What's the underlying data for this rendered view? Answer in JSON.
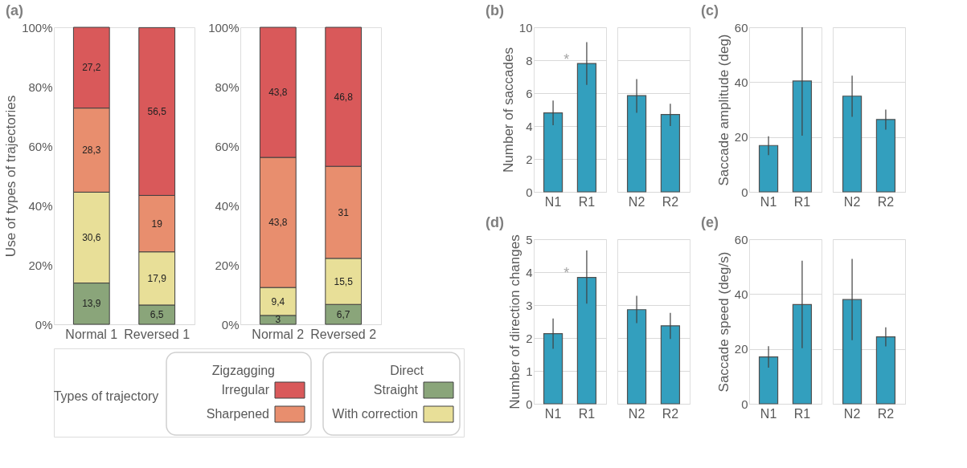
{
  "chart_data": [
    {
      "type": "bar",
      "stacked": true,
      "title": "(a)",
      "ylabel": "Use of types of trajectories",
      "categories": [
        "Normal 1",
        "Reversed 1"
      ],
      "series": [
        {
          "name": "Straight",
          "color": "#8aa57a",
          "values": [
            13.9,
            6.5
          ],
          "value_labels": [
            "13,9",
            "6,5"
          ]
        },
        {
          "name": "With correction",
          "color": "#e8df98",
          "values": [
            30.6,
            17.9
          ],
          "value_labels": [
            "30,6",
            "17,9"
          ]
        },
        {
          "name": "Sharpened",
          "color": "#e88e6e",
          "values": [
            28.3,
            19
          ],
          "value_labels": [
            "28,3",
            "19"
          ]
        },
        {
          "name": "Irregular",
          "color": "#d9595a",
          "values": [
            27.2,
            56.5
          ],
          "value_labels": [
            "27,2",
            "56,5"
          ]
        }
      ],
      "ylim": [
        0,
        100
      ],
      "yticks": [
        {
          "value": 0,
          "label": "0%"
        },
        {
          "value": 20,
          "label": "20%"
        },
        {
          "value": 40,
          "label": "40%"
        },
        {
          "value": 60,
          "label": "60%"
        },
        {
          "value": 80,
          "label": "80%"
        },
        {
          "value": 100,
          "label": "100%"
        }
      ],
      "legend": "bottom",
      "legend_title": "Types of trajectory",
      "annotations": [
        "Zigzagging",
        "Direct"
      ]
    },
    {
      "type": "bar",
      "stacked": true,
      "categories": [
        "Normal 2",
        "Reversed 2"
      ],
      "series": [
        {
          "color": "#8aa57a",
          "values": [
            3,
            6.7
          ],
          "value_labels": [
            "3",
            "6,7"
          ]
        },
        {
          "color": "#e8df98",
          "values": [
            9.4,
            15.5
          ],
          "value_labels": [
            "9,4",
            "15,5"
          ]
        },
        {
          "color": "#e88e6e",
          "values": [
            43.8,
            31
          ],
          "value_labels": [
            "43,8",
            "31"
          ]
        },
        {
          "color": "#d9595a",
          "values": [
            43.8,
            46.8
          ],
          "value_labels": [
            "43,8",
            "46,8"
          ]
        }
      ],
      "ylim": [
        0,
        100
      ],
      "yticks": [
        {
          "value": 0,
          "label": "0%"
        },
        {
          "value": 20,
          "label": "20%"
        },
        {
          "value": 40,
          "label": "40%"
        },
        {
          "value": 60,
          "label": "60%"
        },
        {
          "value": 80,
          "label": "80%"
        },
        {
          "value": 100,
          "label": "100%"
        }
      ]
    },
    {
      "type": "bar",
      "title": "(b)",
      "ylabel": "Number of saccades",
      "categories": [
        "N1",
        "R1"
      ],
      "series": [
        {
          "color": "#339fbe",
          "values": [
            4.8,
            7.8
          ],
          "errors": [
            [
              4.05,
              5.55
            ],
            [
              6.5,
              9.1
            ]
          ]
        }
      ],
      "ylim": [
        0,
        10
      ],
      "yticks": [
        0,
        2,
        4,
        6,
        8,
        10
      ],
      "grid": "y",
      "annotations": [
        {
          "text": "*",
          "x": "R1",
          "y": 7.9
        }
      ]
    },
    {
      "type": "bar",
      "categories": [
        "N2",
        "R2"
      ],
      "series": [
        {
          "color": "#339fbe",
          "values": [
            5.85,
            4.7
          ],
          "errors": [
            [
              4.8,
              6.85
            ],
            [
              4.0,
              5.35
            ]
          ]
        }
      ],
      "ylim": [
        0,
        10
      ],
      "yticks": [
        0,
        2,
        4,
        6,
        8,
        10
      ],
      "grid": "y",
      "tick_labels": "x"
    },
    {
      "type": "bar",
      "title": "(c)",
      "ylabel": "Saccade amplitude (deg)",
      "categories": [
        "N1",
        "R1"
      ],
      "series": [
        {
          "color": "#339fbe",
          "values": [
            16.9,
            40.4
          ],
          "errors": [
            [
              13.4,
              20.3
            ],
            [
              20.5,
              60
            ]
          ]
        }
      ],
      "ylim": [
        0,
        60
      ],
      "yticks": [
        0,
        20,
        40,
        60
      ],
      "grid": "y"
    },
    {
      "type": "bar",
      "categories": [
        "N2",
        "R2"
      ],
      "series": [
        {
          "color": "#339fbe",
          "values": [
            34.9,
            26.4
          ],
          "errors": [
            [
              27.4,
              42.4
            ],
            [
              22.7,
              30.0
            ]
          ]
        }
      ],
      "ylim": [
        0,
        60
      ],
      "yticks": [
        0,
        20,
        40,
        60
      ],
      "grid": "y",
      "tick_labels": "x"
    },
    {
      "type": "bar",
      "title": "(d)",
      "ylabel": "Number of direction changes",
      "categories": [
        "N1",
        "R1"
      ],
      "series": [
        {
          "color": "#339fbe",
          "values": [
            2.13,
            3.84
          ],
          "errors": [
            [
              1.67,
              2.59
            ],
            [
              3.04,
              4.66
            ]
          ]
        }
      ],
      "ylim": [
        0,
        5
      ],
      "yticks": [
        0,
        1,
        2,
        3,
        4,
        5
      ],
      "grid": "y",
      "annotations": [
        {
          "text": "*",
          "x": "R1",
          "y": 3.9
        }
      ]
    },
    {
      "type": "bar",
      "categories": [
        "N2",
        "R2"
      ],
      "series": [
        {
          "color": "#339fbe",
          "values": [
            2.86,
            2.37
          ],
          "errors": [
            [
              2.45,
              3.28
            ],
            [
              1.97,
              2.76
            ]
          ]
        }
      ],
      "ylim": [
        0,
        5
      ],
      "yticks": [
        0,
        1,
        2,
        3,
        4,
        5
      ],
      "grid": "y",
      "tick_labels": "x"
    },
    {
      "type": "bar",
      "title": "(e)",
      "ylabel": "Saccade speed (deg/s)",
      "categories": [
        "N1",
        "R1"
      ],
      "series": [
        {
          "color": "#339fbe",
          "values": [
            17.1,
            36.2
          ],
          "errors": [
            [
              13.2,
              21.0
            ],
            [
              20.3,
              52.2
            ]
          ]
        }
      ],
      "ylim": [
        0,
        60
      ],
      "yticks": [
        0,
        20,
        40,
        60
      ],
      "grid": "y"
    },
    {
      "type": "bar",
      "categories": [
        "N2",
        "R2"
      ],
      "series": [
        {
          "color": "#339fbe",
          "values": [
            38.0,
            24.4
          ],
          "errors": [
            [
              23.2,
              52.8
            ],
            [
              20.9,
              27.9
            ]
          ]
        }
      ],
      "ylim": [
        0,
        60
      ],
      "yticks": [
        0,
        20,
        40,
        60
      ],
      "grid": "y",
      "tick_labels": "x"
    }
  ]
}
